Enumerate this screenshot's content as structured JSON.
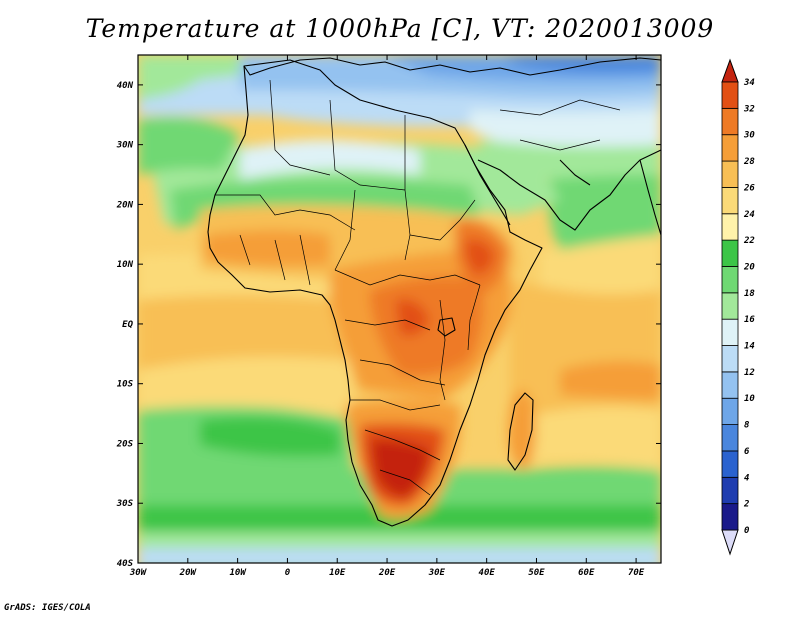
{
  "title": "Temperature at 1000hPa [C], VT: 2020013009",
  "credit": "GrADS: IGES/COLA",
  "map": {
    "region": "Africa",
    "projection": "lat-lon",
    "lon_range": [
      -30,
      75
    ],
    "lat_range": [
      -40,
      45
    ],
    "lon_ticks": [
      {
        "value": -30,
        "label": "30W"
      },
      {
        "value": -20,
        "label": "20W"
      },
      {
        "value": -10,
        "label": "10W"
      },
      {
        "value": 0,
        "label": "0"
      },
      {
        "value": 10,
        "label": "10E"
      },
      {
        "value": 20,
        "label": "20E"
      },
      {
        "value": 30,
        "label": "30E"
      },
      {
        "value": 40,
        "label": "40E"
      },
      {
        "value": 50,
        "label": "50E"
      },
      {
        "value": 60,
        "label": "60E"
      },
      {
        "value": 70,
        "label": "70E"
      }
    ],
    "lat_ticks": [
      {
        "value": 40,
        "label": "40N"
      },
      {
        "value": 30,
        "label": "30N"
      },
      {
        "value": 20,
        "label": "20N"
      },
      {
        "value": 10,
        "label": "10N"
      },
      {
        "value": 0,
        "label": "EQ"
      },
      {
        "value": -10,
        "label": "10S"
      },
      {
        "value": -20,
        "label": "20S"
      },
      {
        "value": -30,
        "label": "30S"
      },
      {
        "value": -40,
        "label": "40S"
      }
    ]
  },
  "colorbar": {
    "levels": [
      "0",
      "2",
      "4",
      "6",
      "8",
      "10",
      "12",
      "14",
      "16",
      "18",
      "20",
      "22",
      "24",
      "26",
      "28",
      "30",
      "32",
      "34"
    ],
    "colors": [
      "#1a1a8a",
      "#1f3db0",
      "#2a62cf",
      "#4a86dd",
      "#6ea6e8",
      "#94c2f0",
      "#bcdcf6",
      "#dff2f7",
      "#a2e89a",
      "#6fd873",
      "#3cc547",
      "#fff2aa",
      "#fbda78",
      "#f8bf55",
      "#f59e38",
      "#ee7a25",
      "#e25014",
      "#c42410"
    ],
    "under_color": "#dcdcf8",
    "over_color": "#c42410"
  }
}
